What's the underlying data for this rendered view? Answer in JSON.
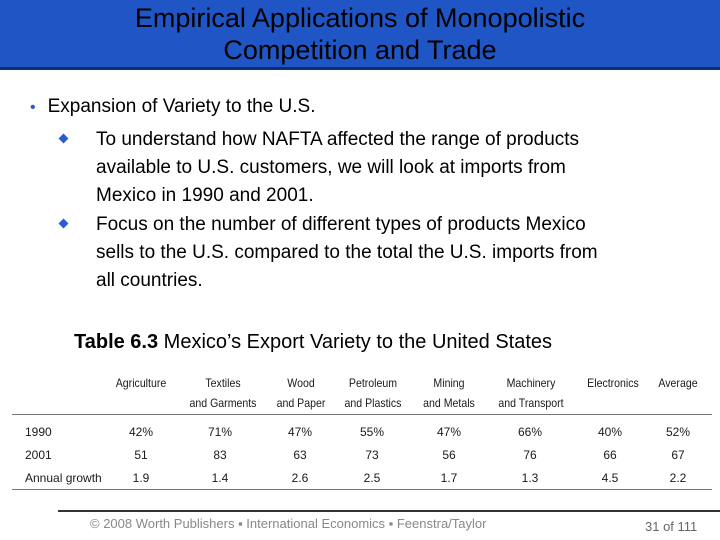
{
  "slide": {
    "title_line1": "Empirical Applications of Monopolistic",
    "title_line2": "Competition and Trade",
    "bullet": "Expansion of Variety to the U.S.",
    "sub_bullets": [
      {
        "lines": [
          "To understand how NAFTA affected the range of products",
          "available to U.S. customers, we will look at imports from",
          "Mexico in 1990 and 2001."
        ]
      },
      {
        "lines": [
          "Focus on the number of different types of products Mexico",
          "sells to the U.S. compared to the total the U.S. imports from",
          "all countries."
        ]
      }
    ]
  },
  "table": {
    "caption_bold": "Table 6.3",
    "caption_rest": " Mexico’s Export Variety to the United States",
    "columns": [
      {
        "line1": "Agriculture",
        "line2": ""
      },
      {
        "line1": "Textiles",
        "line2": "and Garments"
      },
      {
        "line1": "Wood",
        "line2": "and Paper"
      },
      {
        "line1": "Petroleum",
        "line2": "and Plastics"
      },
      {
        "line1": "Mining",
        "line2": "and Metals"
      },
      {
        "line1": "Machinery",
        "line2": "and Transport"
      },
      {
        "line1": "Electronics",
        "line2": ""
      },
      {
        "line1": "Average",
        "line2": ""
      }
    ],
    "rows": [
      {
        "label": "1990",
        "values": [
          "42%",
          "71%",
          "47%",
          "55%",
          "47%",
          "66%",
          "40%",
          "52%"
        ]
      },
      {
        "label": "2001",
        "values": [
          "51",
          "83",
          "63",
          "73",
          "56",
          "76",
          "66",
          "67"
        ]
      },
      {
        "label": "Annual growth",
        "values": [
          "1.9",
          "1.4",
          "2.6",
          "2.5",
          "1.7",
          "1.3",
          "4.5",
          "2.2"
        ]
      }
    ]
  },
  "footer": {
    "copyright": "© 2008 Worth Publishers ▪ International Economics ▪ Feenstra/Taylor",
    "page": "31 of 111"
  },
  "colors": {
    "title_bar": "#1f55c4",
    "bullet_accent": "#2b5bd0"
  }
}
